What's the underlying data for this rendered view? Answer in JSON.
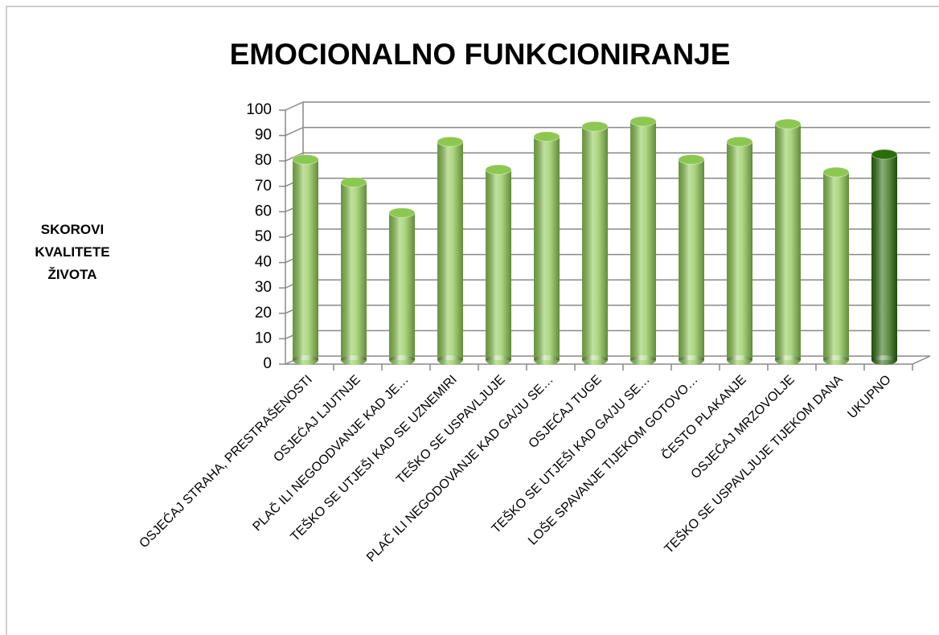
{
  "chart_data": {
    "type": "bar",
    "title": "EMOCIONALNO FUNKCIONIRANJE",
    "y_label": "SKOROVI KVALITETE ŽIVOTA",
    "categories": [
      "OSJEĆAJ STRAHA, PRESTRAŠENOSTI",
      "OSJEĆAJ LJUTNJE",
      "PLAČ ILI NEGOODVANJE KAD JE…",
      "TEŠKO SE UTJEŠI KAD SE UZNEMIRI",
      "TEŠKO SE USPAVLJUJE",
      "PLAČ ILI NEGODOVANJE KAD GA/JU SE…",
      "OSJEĆAJ TUGE",
      "TEŠKO SE UTJEŠI KAD GA/JU SE…",
      "LOŠE SPAVANJE TIJEKOM GOTOVO…",
      "ČESTO PLAKANJE",
      "OSJEĆAJ MRZOVOLJE",
      "TEŠKO SE USPAVLJUJE TIJEKOM DANA",
      "UKUPNO"
    ],
    "values": [
      79,
      70,
      58,
      86,
      75,
      88,
      92,
      94,
      79,
      86,
      93,
      74,
      81
    ],
    "colors": [
      "#8cc850",
      "#8cc850",
      "#8cc850",
      "#8cc850",
      "#8cc850",
      "#8cc850",
      "#8cc850",
      "#8cc850",
      "#8cc850",
      "#8cc850",
      "#8cc850",
      "#8cc850",
      "#2a6e0c"
    ],
    "ylim": [
      0,
      100
    ],
    "yticks": [
      0,
      10,
      20,
      30,
      40,
      50,
      60,
      70,
      80,
      90,
      100
    ],
    "grid": true
  }
}
